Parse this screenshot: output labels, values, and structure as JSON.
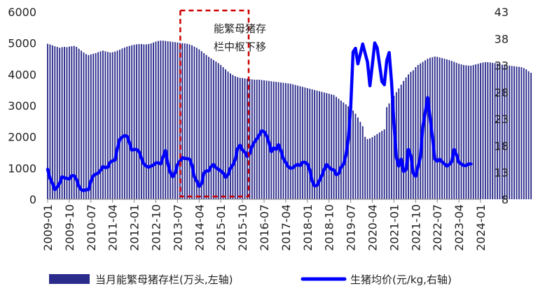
{
  "chart_data": {
    "type": "bar+line",
    "title": "",
    "annotation": {
      "line1": "能繁母猪存",
      "line2": "栏中枢下移",
      "box_start": "2013-07",
      "box_end": "2015-12",
      "color": "#cc0000"
    },
    "x_tick_labels": [
      "2009-01",
      "2009-10",
      "2010-07",
      "2011-04",
      "2012-01",
      "2012-10",
      "2013-07",
      "2014-04",
      "2015-01",
      "2015-10",
      "2016-07",
      "2017-04",
      "2018-01",
      "2018-10",
      "2019-07",
      "2020-04",
      "2021-01",
      "2021-10",
      "2022-07",
      "2023-04",
      "2024-01"
    ],
    "y_left": {
      "min": 0,
      "max": 6000,
      "ticks": [
        0,
        1000,
        2000,
        3000,
        4000,
        5000,
        6000
      ]
    },
    "y_right": {
      "min": 8,
      "max": 43,
      "ticks": [
        8,
        13,
        18,
        23,
        28,
        33,
        38,
        43
      ]
    },
    "series": [
      {
        "name": "当月能繁母猪存栏(万头,左轴)",
        "axis": "left",
        "kind": "bar",
        "color": "#2b2b8c",
        "start": "2009-01",
        "values": [
          4980,
          4960,
          4930,
          4900,
          4880,
          4850,
          4870,
          4880,
          4870,
          4890,
          4900,
          4910,
          4880,
          4820,
          4760,
          4700,
          4650,
          4620,
          4640,
          4660,
          4680,
          4710,
          4740,
          4760,
          4740,
          4720,
          4700,
          4710,
          4730,
          4760,
          4790,
          4830,
          4860,
          4890,
          4910,
          4930,
          4950,
          4960,
          4970,
          4970,
          4960,
          4960,
          4970,
          4990,
          5020,
          5050,
          5070,
          5080,
          5080,
          5070,
          5060,
          5050,
          5040,
          5030,
          5020,
          5010,
          5000,
          4990,
          4980,
          4960,
          4930,
          4890,
          4850,
          4800,
          4740,
          4680,
          4620,
          4560,
          4510,
          4460,
          4410,
          4360,
          4300,
          4230,
          4160,
          4090,
          4030,
          3980,
          3940,
          3910,
          3890,
          3880,
          3870,
          3860,
          3850,
          3840,
          3830,
          3830,
          3830,
          3820,
          3810,
          3800,
          3790,
          3780,
          3770,
          3760,
          3750,
          3740,
          3730,
          3720,
          3710,
          3700,
          3680,
          3660,
          3640,
          3620,
          3600,
          3580,
          3560,
          3540,
          3520,
          3500,
          3480,
          3460,
          3440,
          3420,
          3400,
          3380,
          3360,
          3340,
          3280,
          3220,
          3160,
          3100,
          3040,
          2980,
          2910,
          2840,
          2740,
          2620,
          2480,
          2340,
          2000,
          1930,
          1950,
          1990,
          2040,
          2090,
          2140,
          2190,
          2240,
          2950,
          3070,
          3190,
          3310,
          3430,
          3550,
          3670,
          3790,
          3900,
          4000,
          4080,
          4130,
          4230,
          4300,
          4350,
          4400,
          4450,
          4500,
          4530,
          4550,
          4570,
          4560,
          4540,
          4520,
          4500,
          4480,
          4460,
          4430,
          4400,
          4370,
          4340,
          4320,
          4300,
          4290,
          4280,
          4280,
          4300,
          4320,
          4340,
          4360,
          4380,
          4390,
          4390,
          4380,
          4370,
          4360,
          4350,
          4330,
          4310,
          4300,
          4290,
          4280,
          4270,
          4260,
          4250,
          4240,
          4230,
          4200,
          4160,
          4100,
          4050
        ]
      },
      {
        "name": "生猪均价(元/kg,右轴)",
        "axis": "right",
        "kind": "line",
        "color": "#0000ff",
        "start": "2009-01",
        "values": [
          13.6,
          11.9,
          11.0,
          9.8,
          10.3,
          11.0,
          12.2,
          12.0,
          11.9,
          11.8,
          12.4,
          12.4,
          11.7,
          10.4,
          9.8,
          9.6,
          9.8,
          9.8,
          11.4,
          12.4,
          12.7,
          12.9,
          13.4,
          14.1,
          13.9,
          14.0,
          14.9,
          15.2,
          15.3,
          17.5,
          19.2,
          19.6,
          19.9,
          19.8,
          18.6,
          17.2,
          17.3,
          17.3,
          16.9,
          15.7,
          14.6,
          14.2,
          14.0,
          14.2,
          14.4,
          14.8,
          14.8,
          14.6,
          15.9,
          17.1,
          14.6,
          13.0,
          12.2,
          12.9,
          14.5,
          15.1,
          15.8,
          15.6,
          15.6,
          15.5,
          14.4,
          12.2,
          11.4,
          10.4,
          10.9,
          12.9,
          13.3,
          13.3,
          14.1,
          14.5,
          13.9,
          13.6,
          13.3,
          12.9,
          12.1,
          12.6,
          13.8,
          14.4,
          15.4,
          17.5,
          18.1,
          17.2,
          16.8,
          16.0,
          16.5,
          17.9,
          18.7,
          19.3,
          20.0,
          20.8,
          20.6,
          19.9,
          18.6,
          16.9,
          17.6,
          17.3,
          18.2,
          17.1,
          15.6,
          14.9,
          14.1,
          13.8,
          13.9,
          14.3,
          14.5,
          14.3,
          14.9,
          14.9,
          14.6,
          13.5,
          11.4,
          10.5,
          10.6,
          11.5,
          12.4,
          13.6,
          14.5,
          14.0,
          13.6,
          13.5,
          12.6,
          12.8,
          14.0,
          14.5,
          16.2,
          19.2,
          25.0,
          35.5,
          36.2,
          33.3,
          35.1,
          37.0,
          35.3,
          33.6,
          29.2,
          33.1,
          37.2,
          36.3,
          33.2,
          30.0,
          29.4,
          33.9,
          35.4,
          29.9,
          22.1,
          15.8,
          14.2,
          15.5,
          13.2,
          13.5,
          17.3,
          16.2,
          12.9,
          12.3,
          14.1,
          15.9,
          21.6,
          24.2,
          27.0,
          23.3,
          19.6,
          15.5,
          15.1,
          15.5,
          15.0,
          14.6,
          14.2,
          14.5,
          15.0,
          17.3,
          16.3,
          14.9,
          14.6,
          14.3,
          14.3,
          14.6,
          14.6
        ]
      }
    ]
  }
}
